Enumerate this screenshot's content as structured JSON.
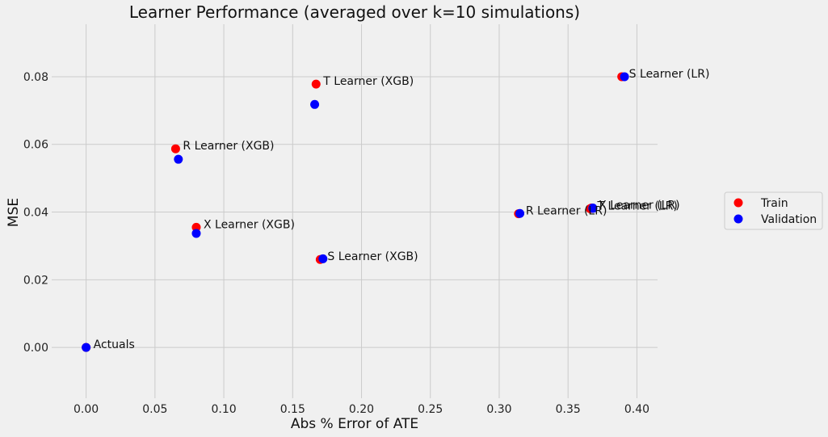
{
  "chart_data": {
    "type": "scatter",
    "title": "Learner Performance (averaged over k=10 simulations)",
    "xlabel": "Abs % Error of ATE",
    "ylabel": "MSE",
    "xlim": [
      -0.025,
      0.415
    ],
    "ylim": [
      -0.015,
      0.0955
    ],
    "xticks": [
      "0.00",
      "0.05",
      "0.10",
      "0.15",
      "0.20",
      "0.25",
      "0.30",
      "0.35",
      "0.40"
    ],
    "yticks": [
      "0.00",
      "0.02",
      "0.04",
      "0.06",
      "0.08"
    ],
    "grid": true,
    "legend_position": "right",
    "series": [
      {
        "name": "Train",
        "color": "#ff0000",
        "points": [
          {
            "label": "T Learner (XGB)",
            "x": 0.167,
            "y": 0.0778
          },
          {
            "label": "S Learner (LR)",
            "x": 0.389,
            "y": 0.08
          },
          {
            "label": "R Learner (XGB)",
            "x": 0.065,
            "y": 0.0587
          },
          {
            "label": "X Learner (XGB)",
            "x": 0.08,
            "y": 0.0355
          },
          {
            "label": "S Learner (XGB)",
            "x": 0.17,
            "y": 0.026
          },
          {
            "label": "R Learner (LR)",
            "x": 0.314,
            "y": 0.0395
          },
          {
            "label": "T Learner (LR)",
            "x": 0.366,
            "y": 0.041
          },
          {
            "label": "X Learner (LR)",
            "x": 0.367,
            "y": 0.0412
          },
          {
            "label": "Actuals",
            "x": 0.0,
            "y": 0.0
          }
        ]
      },
      {
        "name": "Validation",
        "color": "#0000ff",
        "points": [
          {
            "x": 0.166,
            "y": 0.0718
          },
          {
            "x": 0.391,
            "y": 0.08
          },
          {
            "x": 0.067,
            "y": 0.0556
          },
          {
            "x": 0.08,
            "y": 0.0337
          },
          {
            "x": 0.172,
            "y": 0.0262
          },
          {
            "x": 0.315,
            "y": 0.0396
          },
          {
            "x": 0.368,
            "y": 0.0412
          },
          {
            "x": 0.368,
            "y": 0.0411
          },
          {
            "x": 0.0,
            "y": 0.0
          }
        ]
      }
    ]
  }
}
